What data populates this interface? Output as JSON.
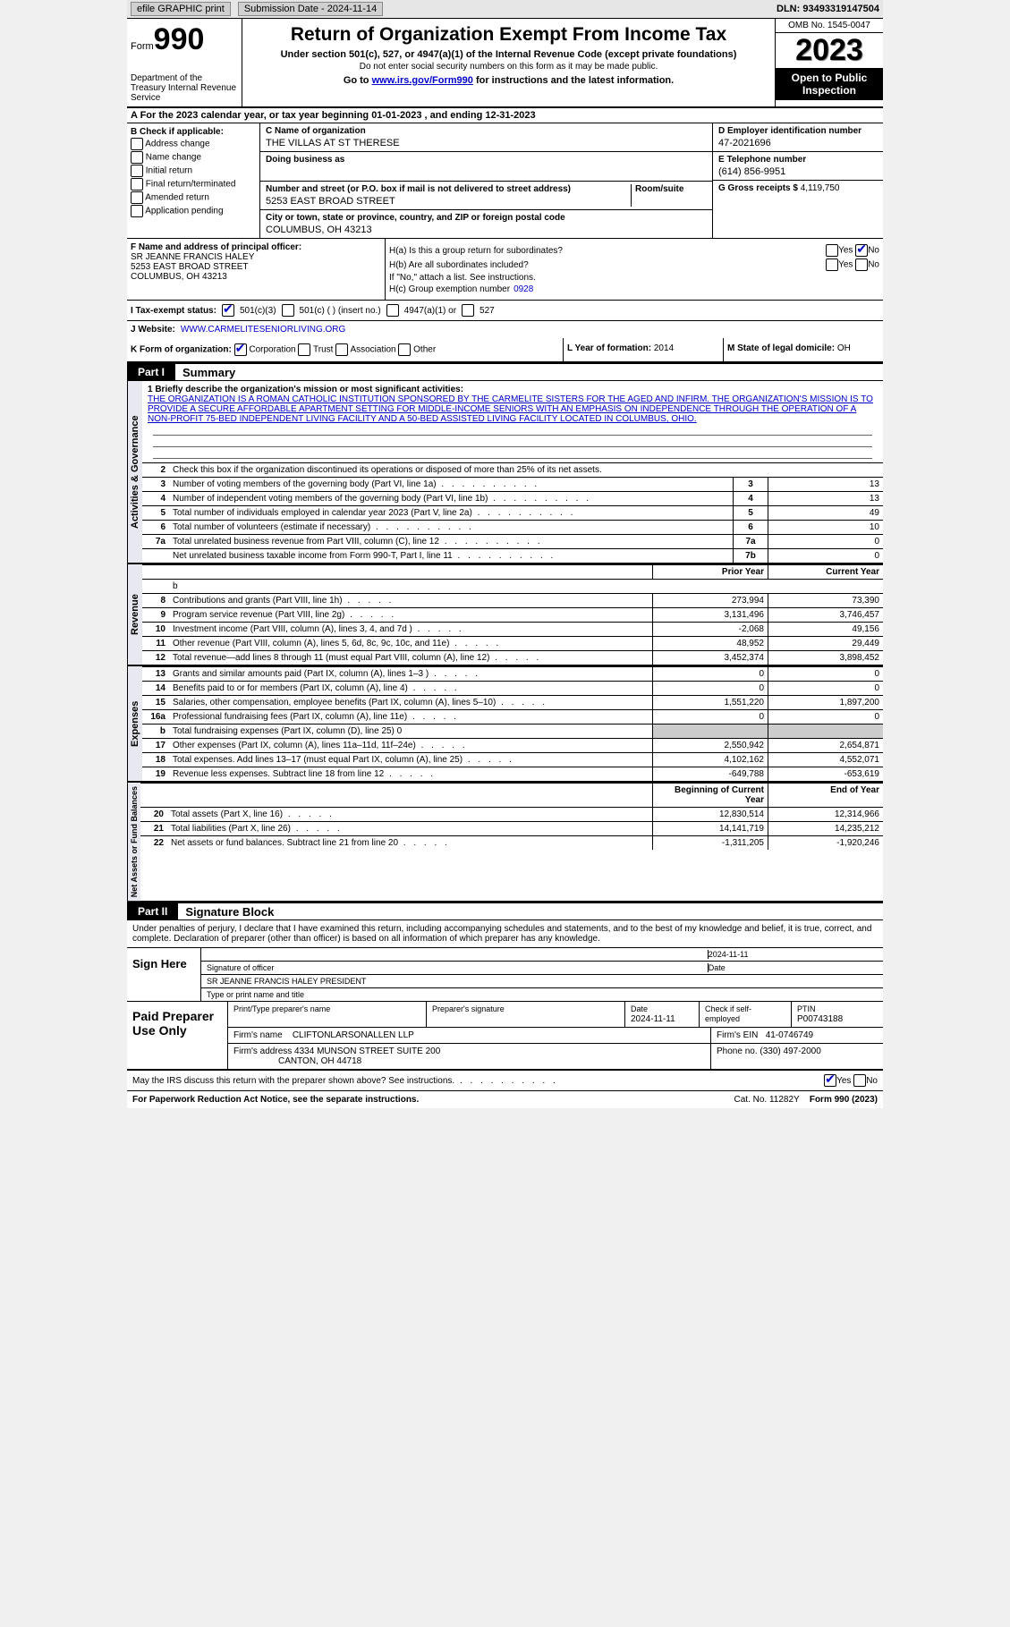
{
  "topbar": {
    "efile": "efile GRAPHIC print",
    "submission_label": "Submission Date - 2024-11-14",
    "dln_label": "DLN: 93493319147504"
  },
  "header": {
    "form_word": "Form",
    "form_num": "990",
    "dept": "Department of the Treasury Internal Revenue Service",
    "title": "Return of Organization Exempt From Income Tax",
    "sub": "Under section 501(c), 527, or 4947(a)(1) of the Internal Revenue Code (except private foundations)",
    "note": "Do not enter social security numbers on this form as it may be made public.",
    "goto_pre": "Go to ",
    "goto_link": "www.irs.gov/Form990",
    "goto_post": " for instructions and the latest information.",
    "omb": "OMB No. 1545-0047",
    "year": "2023",
    "open": "Open to Public Inspection"
  },
  "row_a": "A  For the 2023 calendar year, or tax year beginning 01-01-2023   , and ending 12-31-2023",
  "section_b": {
    "hdr": "B Check if applicable:",
    "items": [
      "Address change",
      "Name change",
      "Initial return",
      "Final return/terminated",
      "Amended return",
      "Application pending"
    ]
  },
  "section_c": {
    "name_lbl": "C Name of organization",
    "name_val": "THE VILLAS AT ST THERESE",
    "dba_lbl": "Doing business as",
    "street_lbl": "Number and street (or P.O. box if mail is not delivered to street address)",
    "room_lbl": "Room/suite",
    "street_val": "5253 EAST BROAD STREET",
    "city_lbl": "City or town, state or province, country, and ZIP or foreign postal code",
    "city_val": "COLUMBUS, OH  43213"
  },
  "section_d": {
    "ein_lbl": "D Employer identification number",
    "ein_val": "47-2021696",
    "tel_lbl": "E Telephone number",
    "tel_val": "(614) 856-9951",
    "gross_lbl": "G Gross receipts $",
    "gross_val": "4,119,750"
  },
  "section_f": {
    "lbl": "F Name and address of principal officer:",
    "name": "SR JEANNE FRANCIS HALEY",
    "street": "5253 EAST BROAD STREET",
    "city": "COLUMBUS, OH  43213"
  },
  "section_h": {
    "ha": "H(a)  Is this a group return for subordinates?",
    "hb": "H(b)  Are all subordinates included?",
    "hb_note": "If \"No,\" attach a list. See instructions.",
    "hc": "H(c)  Group exemption number",
    "hc_val": "0928",
    "yes": "Yes",
    "no": "No"
  },
  "row_i": {
    "lbl": "I  Tax-exempt status:",
    "o1": "501(c)(3)",
    "o2": "501(c) (  ) (insert no.)",
    "o3": "4947(a)(1) or",
    "o4": "527"
  },
  "row_j": {
    "lbl": "J  Website:",
    "val": "WWW.CARMELITESENIORLIVING.ORG"
  },
  "row_k": {
    "lbl": "K Form of organization:",
    "opts": [
      "Corporation",
      "Trust",
      "Association",
      "Other"
    ]
  },
  "row_l": {
    "lbl": "L Year of formation:",
    "val": "2014"
  },
  "row_m": {
    "lbl": "M State of legal domicile:",
    "val": "OH"
  },
  "part1": {
    "label": "Part I",
    "title": "Summary",
    "mission_lbl": "1  Briefly describe the organization's mission or most significant activities:",
    "mission": "THE ORGANIZATION IS A ROMAN CATHOLIC INSTITUTION SPONSORED BY THE CARMELITE SISTERS FOR THE AGED AND INFIRM. THE ORGANIZATION'S MISSION IS TO PROVIDE A SECURE AFFORDABLE APARTMENT SETTING FOR MIDDLE-INCOME SENIORS WITH AN EMPHASIS ON INDEPENDENCE THROUGH THE OPERATION OF A NON-PROFIT 75-BED INDEPENDENT LIVING FACILITY AND A 50-BED ASSISTED LIVING FACILITY LOCATED IN COLUMBUS, OHIO.",
    "line2": "Check this box         if the organization discontinued its operations or disposed of more than 25% of its net assets.",
    "vert_labels": [
      "Activities & Governance",
      "Revenue",
      "Expenses",
      "Net Assets or Fund Balances"
    ],
    "gov_rows": [
      {
        "n": "3",
        "txt": "Number of voting members of the governing body (Part VI, line 1a)",
        "box": "3",
        "val": "13"
      },
      {
        "n": "4",
        "txt": "Number of independent voting members of the governing body (Part VI, line 1b)",
        "box": "4",
        "val": "13"
      },
      {
        "n": "5",
        "txt": "Total number of individuals employed in calendar year 2023 (Part V, line 2a)",
        "box": "5",
        "val": "49"
      },
      {
        "n": "6",
        "txt": "Total number of volunteers (estimate if necessary)",
        "box": "6",
        "val": "10"
      },
      {
        "n": "7a",
        "txt": "Total unrelated business revenue from Part VIII, column (C), line 12",
        "box": "7a",
        "val": "0"
      },
      {
        "n": "",
        "txt": "Net unrelated business taxable income from Form 990-T, Part I, line 11",
        "box": "7b",
        "val": "0"
      }
    ],
    "two_col_hdr": {
      "prior": "Prior Year",
      "cur": "Current Year"
    },
    "rev_rows": [
      {
        "n": "",
        "txt": "b"
      },
      {
        "n": "8",
        "txt": "Contributions and grants (Part VIII, line 1h)",
        "p": "273,994",
        "c": "73,390"
      },
      {
        "n": "9",
        "txt": "Program service revenue (Part VIII, line 2g)",
        "p": "3,131,496",
        "c": "3,746,457"
      },
      {
        "n": "10",
        "txt": "Investment income (Part VIII, column (A), lines 3, 4, and 7d )",
        "p": "-2,068",
        "c": "49,156"
      },
      {
        "n": "11",
        "txt": "Other revenue (Part VIII, column (A), lines 5, 6d, 8c, 9c, 10c, and 11e)",
        "p": "48,952",
        "c": "29,449"
      },
      {
        "n": "12",
        "txt": "Total revenue—add lines 8 through 11 (must equal Part VIII, column (A), line 12)",
        "p": "3,452,374",
        "c": "3,898,452"
      }
    ],
    "exp_rows": [
      {
        "n": "13",
        "txt": "Grants and similar amounts paid (Part IX, column (A), lines 1–3 )",
        "p": "0",
        "c": "0"
      },
      {
        "n": "14",
        "txt": "Benefits paid to or for members (Part IX, column (A), line 4)",
        "p": "0",
        "c": "0"
      },
      {
        "n": "15",
        "txt": "Salaries, other compensation, employee benefits (Part IX, column (A), lines 5–10)",
        "p": "1,551,220",
        "c": "1,897,200"
      },
      {
        "n": "16a",
        "txt": "Professional fundraising fees (Part IX, column (A), line 11e)",
        "p": "0",
        "c": "0"
      },
      {
        "n": "b",
        "txt": "Total fundraising expenses (Part IX, column (D), line 25) 0",
        "grey": true
      },
      {
        "n": "17",
        "txt": "Other expenses (Part IX, column (A), lines 11a–11d, 11f–24e)",
        "p": "2,550,942",
        "c": "2,654,871"
      },
      {
        "n": "18",
        "txt": "Total expenses. Add lines 13–17 (must equal Part IX, column (A), line 25)",
        "p": "4,102,162",
        "c": "4,552,071"
      },
      {
        "n": "19",
        "txt": "Revenue less expenses. Subtract line 18 from line 12",
        "p": "-649,788",
        "c": "-653,619"
      }
    ],
    "net_hdr": {
      "beg": "Beginning of Current Year",
      "end": "End of Year"
    },
    "net_rows": [
      {
        "n": "20",
        "txt": "Total assets (Part X, line 16)",
        "p": "12,830,514",
        "c": "12,314,966"
      },
      {
        "n": "21",
        "txt": "Total liabilities (Part X, line 26)",
        "p": "14,141,719",
        "c": "14,235,212"
      },
      {
        "n": "22",
        "txt": "Net assets or fund balances. Subtract line 21 from line 20",
        "p": "-1,311,205",
        "c": "-1,920,246"
      }
    ]
  },
  "part2": {
    "label": "Part II",
    "title": "Signature Block",
    "decl": "Under penalties of perjury, I declare that I have examined this return, including accompanying schedules and statements, and to the best of my knowledge and belief, it is true, correct, and complete. Declaration of preparer (other than officer) is based on all information of which preparer has any knowledge.",
    "sign_here": "Sign Here",
    "sig_date": "2024-11-11",
    "sig_lbl": "Signature of officer",
    "date_lbl": "Date",
    "officer": "SR JEANNE FRANCIS HALEY  PRESIDENT",
    "type_lbl": "Type or print name and title",
    "paid": "Paid Preparer Use Only",
    "prep_name_lbl": "Print/Type preparer's name",
    "prep_sig_lbl": "Preparer's signature",
    "prep_date_lbl": "Date",
    "prep_date": "2024-11-11",
    "self_emp": "Check        if self-employed",
    "ptin_lbl": "PTIN",
    "ptin": "P00743188",
    "firm_lbl": "Firm's name",
    "firm": "CLIFTONLARSONALLEN LLP",
    "firm_ein_lbl": "Firm's EIN",
    "firm_ein": "41-0746749",
    "firm_addr_lbl": "Firm's address",
    "firm_addr1": "4334 MUNSON STREET SUITE 200",
    "firm_addr2": "CANTON, OH  44718",
    "phone_lbl": "Phone no.",
    "phone": "(330) 497-2000"
  },
  "footer": {
    "discuss": "May the IRS discuss this return with the preparer shown above? See instructions.",
    "yes": "Yes",
    "no": "No",
    "paperwork": "For Paperwork Reduction Act Notice, see the separate instructions.",
    "cat": "Cat. No. 11282Y",
    "form": "Form 990 (2023)"
  }
}
